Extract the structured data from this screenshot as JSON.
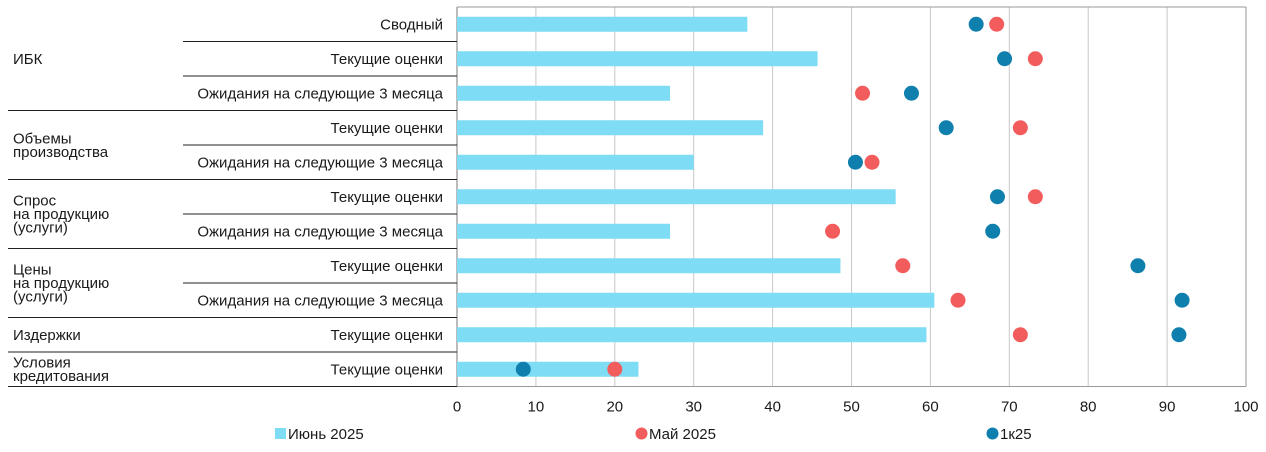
{
  "chart_data": {
    "type": "bar",
    "orientation": "horizontal",
    "xlim": [
      0,
      100
    ],
    "xticks": [
      0,
      10,
      20,
      30,
      40,
      50,
      60,
      70,
      80,
      90,
      100
    ],
    "grid": "vertical",
    "legend_position": "bottom",
    "groups": [
      {
        "name": "ИБК",
        "rows": [
          0,
          2
        ]
      },
      {
        "name": "Объемы\nпроизводства",
        "rows": [
          3,
          4
        ]
      },
      {
        "name": "Спрос\nна продукцию\n(услуги)",
        "rows": [
          5,
          6
        ]
      },
      {
        "name": "Цены\nна продукцию\n(услуги)",
        "rows": [
          7,
          8
        ]
      },
      {
        "name": "Издержки",
        "rows": [
          9,
          9
        ]
      },
      {
        "name": "Условия\nкредитования",
        "rows": [
          10,
          10
        ]
      }
    ],
    "categories": [
      "Сводный",
      "Текущие оценки",
      "Ожидания на следующие 3 месяца",
      "Текущие оценки",
      "Ожидания на следующие 3 месяца",
      "Текущие оценки",
      "Ожидания на следующие 3 месяца",
      "Текущие оценки",
      "Ожидания на следующие 3 месяца",
      "Текущие оценки",
      "Текущие оценки"
    ],
    "series": [
      {
        "name": "Июнь 2025",
        "kind": "bar",
        "color": "#7fdcf5",
        "values": [
          36.8,
          45.7,
          27.0,
          38.8,
          30.0,
          55.6,
          27.0,
          48.6,
          60.5,
          59.5,
          23.0
        ]
      },
      {
        "name": "Май 2025",
        "kind": "dot",
        "color": "#f25c5c",
        "values": [
          68.4,
          73.3,
          51.4,
          71.4,
          52.6,
          73.3,
          47.6,
          56.5,
          63.5,
          71.4,
          20.0
        ]
      },
      {
        "name": "1к25",
        "kind": "dot",
        "color": "#0f7fad",
        "values": [
          65.8,
          69.4,
          57.6,
          62.0,
          50.5,
          68.5,
          67.9,
          86.3,
          91.9,
          91.5,
          8.4
        ]
      }
    ]
  }
}
